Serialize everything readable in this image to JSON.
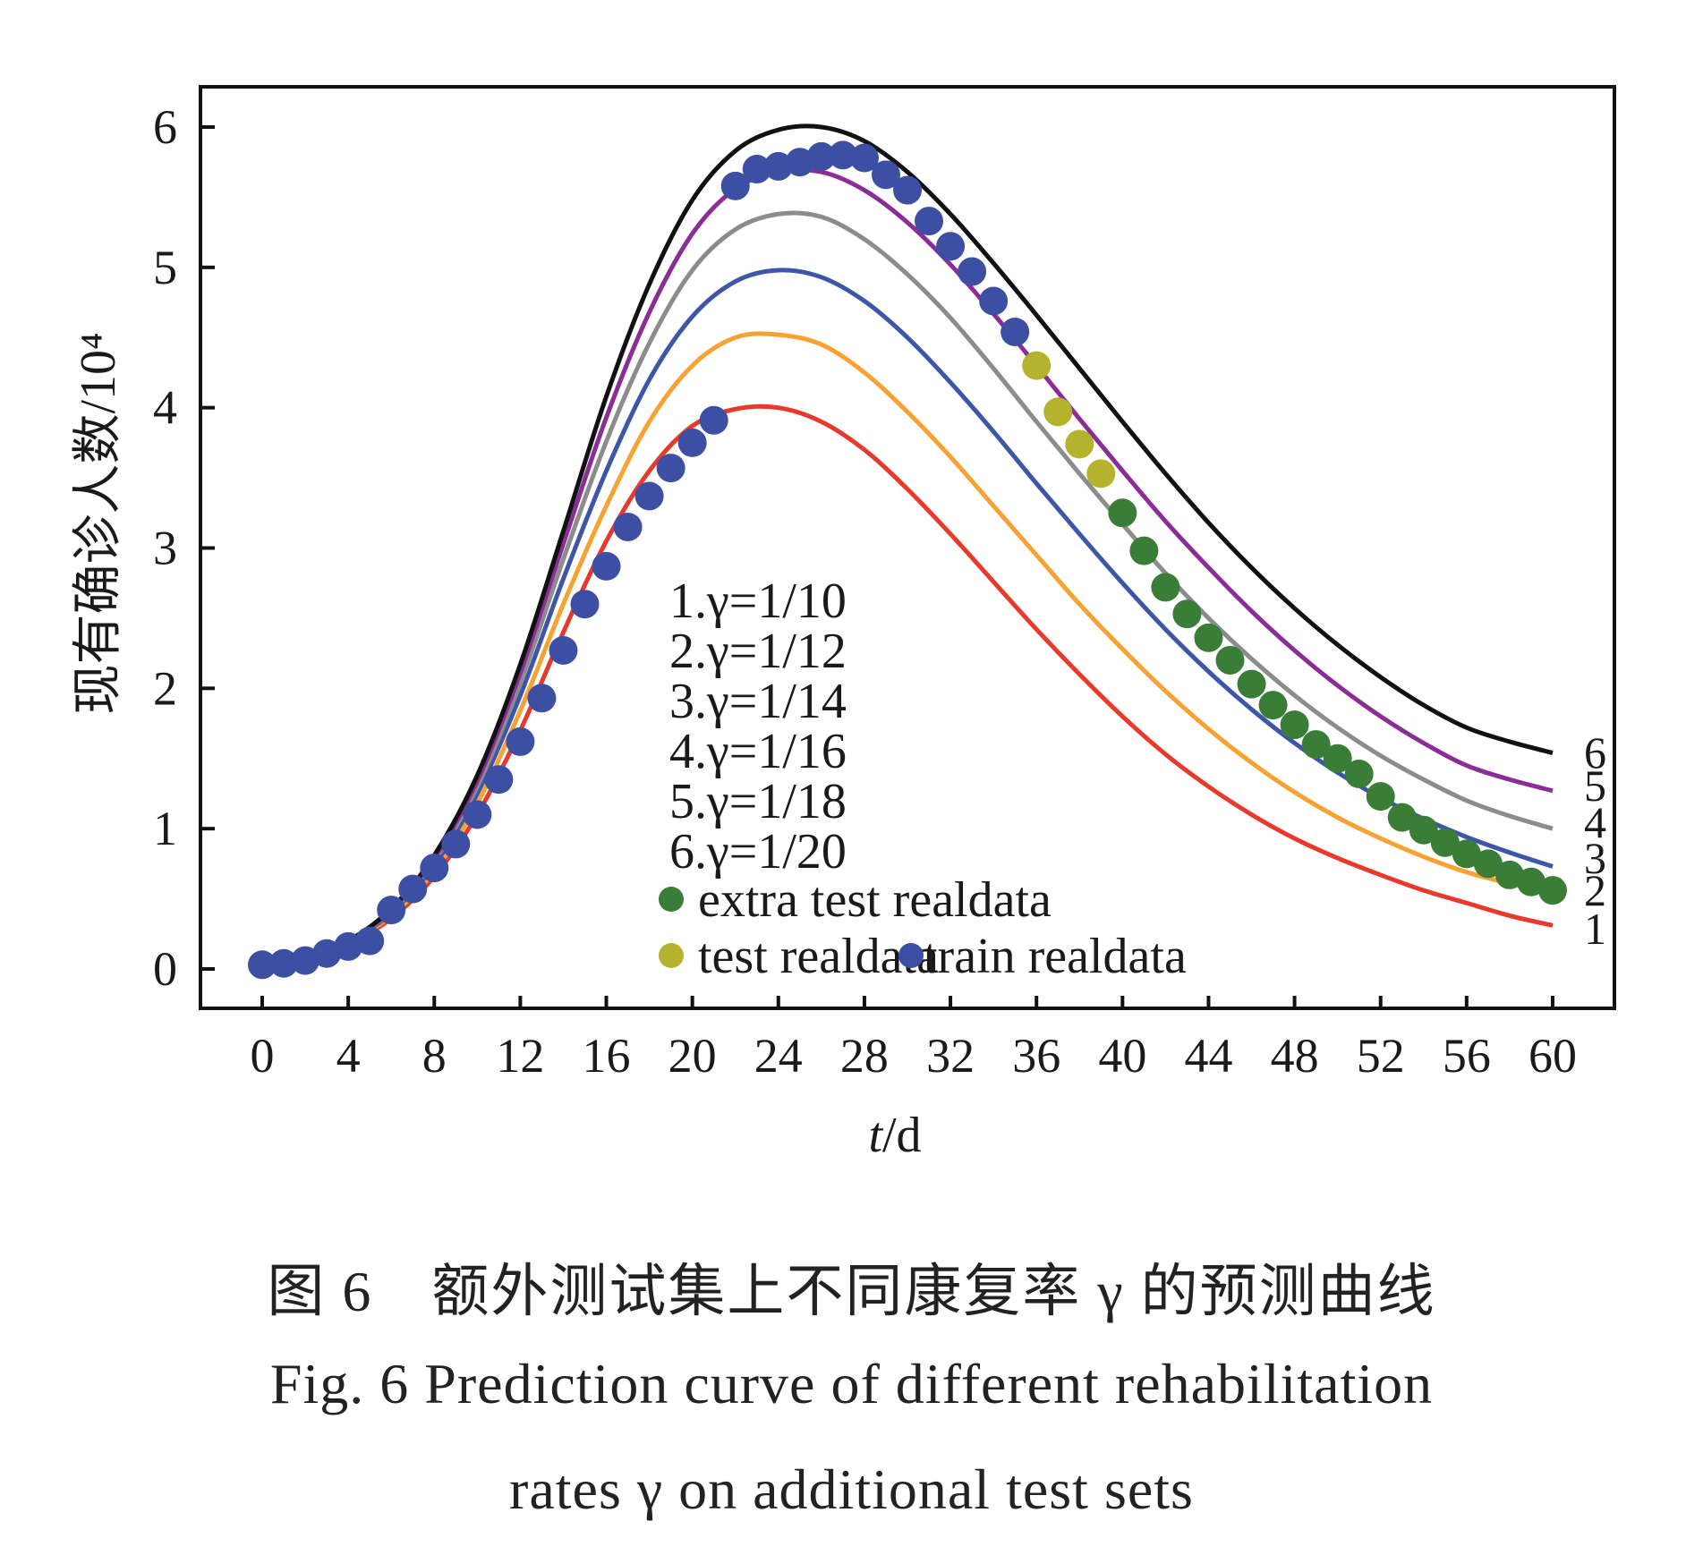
{
  "chart_data": {
    "type": "line",
    "title": "",
    "xlabel": "t/d",
    "xlabel_italic_part": "t",
    "xlabel_rest": "/d",
    "ylabel": "现有确诊人数/10⁴",
    "xlim": [
      -2,
      63
    ],
    "ylim": [
      -0.3,
      6.3
    ],
    "xticks": [
      0,
      4,
      8,
      12,
      16,
      20,
      24,
      28,
      32,
      36,
      40,
      44,
      48,
      52,
      56,
      60
    ],
    "yticks": [
      0,
      1,
      2,
      3,
      4,
      5,
      6
    ],
    "grid": false,
    "legend_position": "center-bottom",
    "curve_x": [
      0,
      2,
      4,
      6,
      8,
      10,
      12,
      14,
      16,
      18,
      20,
      22,
      24,
      26,
      28,
      30,
      32,
      34,
      36,
      38,
      40,
      42,
      44,
      46,
      48,
      50,
      52,
      54,
      56,
      58,
      60
    ],
    "series": [
      {
        "name": "1.γ=1/10",
        "end_label": "1",
        "color": "#e8392d",
        "values": [
          0.03,
          0.08,
          0.18,
          0.36,
          0.66,
          1.1,
          1.7,
          2.4,
          3.05,
          3.55,
          3.87,
          3.99,
          4.0,
          3.9,
          3.7,
          3.42,
          3.1,
          2.76,
          2.42,
          2.1,
          1.8,
          1.53,
          1.3,
          1.1,
          0.93,
          0.79,
          0.67,
          0.56,
          0.47,
          0.38,
          0.31
        ]
      },
      {
        "name": "2.γ=1/12",
        "end_label": "2",
        "color": "#f7a233",
        "values": [
          0.03,
          0.08,
          0.19,
          0.38,
          0.7,
          1.18,
          1.84,
          2.6,
          3.3,
          3.9,
          4.3,
          4.5,
          4.52,
          4.45,
          4.25,
          3.97,
          3.65,
          3.3,
          2.95,
          2.6,
          2.28,
          1.98,
          1.71,
          1.47,
          1.26,
          1.08,
          0.93,
          0.8,
          0.69,
          0.61,
          0.55
        ]
      },
      {
        "name": "3.γ=1/14",
        "end_label": "3",
        "color": "#3e56a8",
        "values": [
          0.03,
          0.08,
          0.19,
          0.4,
          0.74,
          1.25,
          1.95,
          2.78,
          3.55,
          4.2,
          4.65,
          4.9,
          4.98,
          4.93,
          4.76,
          4.5,
          4.18,
          3.83,
          3.46,
          3.1,
          2.75,
          2.42,
          2.12,
          1.85,
          1.61,
          1.4,
          1.22,
          1.07,
          0.94,
          0.83,
          0.73
        ]
      },
      {
        "name": "4.γ=1/16",
        "end_label": "4",
        "color": "#8c8c8c",
        "values": [
          0.03,
          0.08,
          0.2,
          0.41,
          0.77,
          1.3,
          2.04,
          2.92,
          3.76,
          4.46,
          4.98,
          5.27,
          5.38,
          5.36,
          5.2,
          4.95,
          4.64,
          4.28,
          3.9,
          3.53,
          3.17,
          2.82,
          2.5,
          2.21,
          1.95,
          1.72,
          1.52,
          1.35,
          1.2,
          1.09,
          1.0
        ]
      },
      {
        "name": "5.γ=1/18",
        "end_label": "5",
        "color": "#8a2e96",
        "values": [
          0.03,
          0.08,
          0.2,
          0.42,
          0.79,
          1.34,
          2.11,
          3.03,
          3.93,
          4.68,
          5.24,
          5.56,
          5.68,
          5.68,
          5.55,
          5.32,
          5.02,
          4.67,
          4.3,
          3.92,
          3.55,
          3.19,
          2.86,
          2.55,
          2.27,
          2.02,
          1.8,
          1.61,
          1.45,
          1.35,
          1.27
        ]
      },
      {
        "name": "6.γ=1/20",
        "end_label": "6",
        "color": "#111111",
        "values": [
          0.03,
          0.08,
          0.2,
          0.43,
          0.81,
          1.38,
          2.17,
          3.12,
          4.08,
          4.88,
          5.48,
          5.83,
          5.98,
          6.0,
          5.9,
          5.68,
          5.38,
          5.03,
          4.66,
          4.28,
          3.9,
          3.53,
          3.18,
          2.86,
          2.57,
          2.31,
          2.08,
          1.88,
          1.72,
          1.62,
          1.54
        ]
      }
    ],
    "scatter": [
      {
        "name": "train realdata",
        "color": "#3d4fa3",
        "x": [
          0,
          1,
          2,
          3,
          4,
          5,
          6,
          7,
          8,
          9,
          10,
          11,
          12,
          13,
          14,
          15,
          16,
          17,
          18,
          19,
          20,
          21,
          22,
          23,
          24,
          25,
          26,
          27,
          28,
          29,
          30,
          31,
          32,
          33,
          34,
          35
        ],
        "y": [
          0.03,
          0.04,
          0.06,
          0.11,
          0.16,
          0.2,
          0.42,
          0.57,
          0.72,
          0.89,
          1.1,
          1.35,
          1.62,
          1.93,
          2.27,
          2.6,
          2.87,
          3.15,
          3.37,
          3.57,
          3.75,
          3.91,
          5.58,
          5.7,
          5.72,
          5.75,
          5.79,
          5.8,
          5.78,
          5.66,
          5.55,
          5.33,
          5.15,
          4.97,
          4.76,
          4.54
        ]
      },
      {
        "name": "test realdata",
        "color": "#b5b32e",
        "x": [
          36,
          37,
          38,
          39
        ],
        "y": [
          4.3,
          3.97,
          3.74,
          3.53
        ]
      },
      {
        "name": "extra test realdata",
        "color": "#3a7d37",
        "x": [
          40,
          41,
          42,
          43,
          44,
          45,
          46,
          47,
          48,
          49,
          50,
          51,
          52,
          53,
          54,
          55,
          56,
          57,
          58,
          59,
          60
        ],
        "y": [
          3.25,
          2.98,
          2.72,
          2.53,
          2.36,
          2.2,
          2.03,
          1.88,
          1.74,
          1.6,
          1.5,
          1.39,
          1.23,
          1.08,
          0.99,
          0.9,
          0.82,
          0.75,
          0.67,
          0.62,
          0.56
        ]
      }
    ],
    "legend": {
      "line_entries": [
        "1.γ=1/10",
        "2.γ=1/12",
        "3.γ=1/14",
        "4.γ=1/16",
        "5.γ=1/18",
        "6.γ=1/20"
      ],
      "marker_entries": [
        {
          "label": "extra test realdata",
          "color": "#3a7d37"
        },
        {
          "label": "test realdata",
          "color": "#b5b32e"
        },
        {
          "label": "train realdata",
          "color": "#3d4fa3"
        }
      ]
    }
  },
  "captions": {
    "cn": "图 6　额外测试集上不同康复率 γ 的预测曲线",
    "en_line1": "Fig. 6   Prediction curve of different rehabilitation",
    "en_line2": "rates γ on additional test sets"
  }
}
